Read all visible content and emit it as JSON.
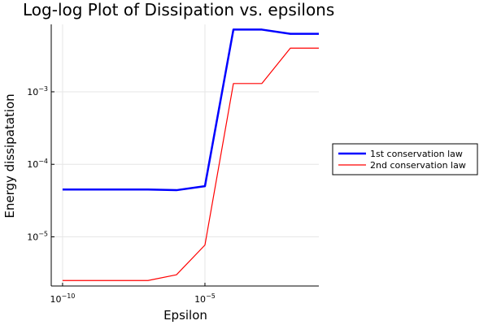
{
  "chart_data": {
    "type": "line",
    "title": "Log-log Plot of Dissipation vs. epsilons",
    "xlabel": "Epsilon",
    "ylabel": "Energy dissipatation",
    "xscale": "log",
    "yscale": "log",
    "xlim": [
      4e-11,
      0.1
    ],
    "ylim": [
      2.1e-06,
      0.0085
    ],
    "grid": true,
    "legend_position": "outside-right",
    "x": [
      1e-10,
      1e-09,
      1e-08,
      1e-07,
      1e-06,
      1e-05,
      0.0001,
      0.001,
      0.01,
      0.1
    ],
    "x_ticks": [
      {
        "value": 1e-10,
        "base": "10",
        "exp": "−10"
      },
      {
        "value": 1e-05,
        "base": "10",
        "exp": "−5"
      }
    ],
    "y_ticks": [
      {
        "value": 1e-05,
        "base": "10",
        "exp": "−5"
      },
      {
        "value": 0.0001,
        "base": "10",
        "exp": "−4"
      },
      {
        "value": 0.001,
        "base": "10",
        "exp": "−3"
      }
    ],
    "series": [
      {
        "name": "1st conservation law",
        "color": "#0000ff",
        "values": [
          4.5e-05,
          4.5e-05,
          4.5e-05,
          4.5e-05,
          4.4e-05,
          5e-05,
          0.0072,
          0.0072,
          0.0063,
          0.0063
        ]
      },
      {
        "name": "2nd conservation law",
        "color": "#ff0000",
        "values": [
          2.5e-06,
          2.5e-06,
          2.5e-06,
          2.5e-06,
          3e-06,
          7.7e-06,
          0.0013,
          0.0013,
          0.004,
          0.004
        ]
      }
    ]
  }
}
